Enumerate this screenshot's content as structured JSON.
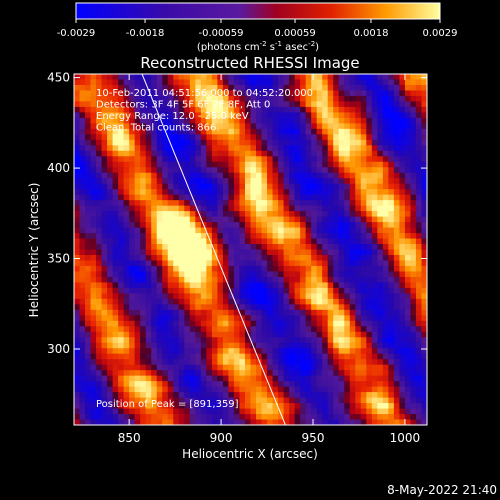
{
  "chart_data": {
    "type": "heatmap",
    "title": "Reconstructed RHESSI Image",
    "xlabel": "Heliocentric X (arcsec)",
    "ylabel": "Heliocentric Y (arcsec)",
    "xlim": [
      820,
      1012
    ],
    "ylim": [
      258,
      452
    ],
    "xticks": [
      850,
      900,
      950,
      1000
    ],
    "yticks": [
      300,
      350,
      400,
      450
    ],
    "colorbar": {
      "ticks": [
        "-0.0029",
        "-0.0018",
        "-0.00059",
        "0.00059",
        "0.0018",
        "0.0029"
      ],
      "values": [
        -0.0029,
        -0.0018,
        -0.00059,
        0.00059,
        0.0018,
        0.0029
      ],
      "unit_label_parts": [
        "(photons cm",
        "-2",
        " s",
        "-1",
        " asec",
        "-2",
        ")"
      ]
    },
    "annotations": [
      "10-Feb-2011 04:51:56.000 to 04:52:20.000",
      "Detectors: 3F 4F 5F 6F 7F 8F, Att 0",
      "Energy Range: 12.0 - 25.0 keV",
      "Clean.    Total counts: 866."
    ],
    "peak_label": "Position of Peak = [891,359]",
    "peak": [
      891,
      359
    ],
    "limb_line": [
      [
        857,
        452
      ],
      [
        935,
        258
      ]
    ]
  },
  "footer": {
    "timestamp": "8-May-2022 21:40"
  }
}
